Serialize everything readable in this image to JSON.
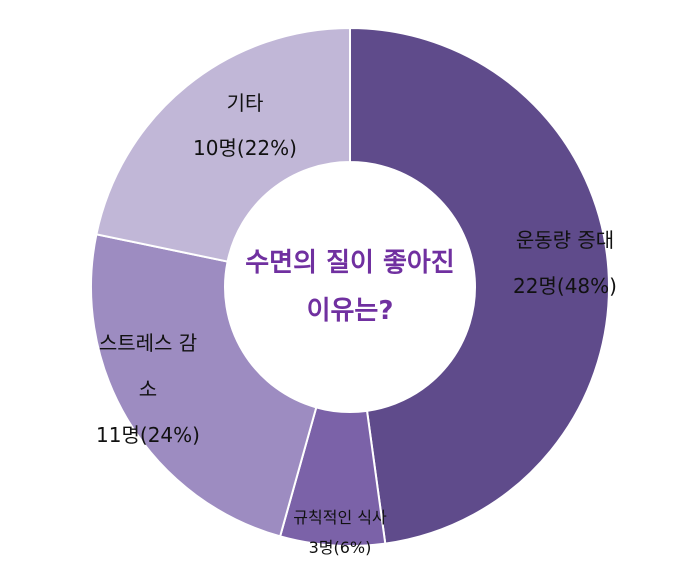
{
  "chart_data": {
    "type": "donut",
    "title": "수면의 질이 좋아진 이유는?",
    "categories": [
      "운동량 증대",
      "규칙적인 식사",
      "스트레스 감소",
      "기타"
    ],
    "values": [
      22,
      3,
      11,
      10
    ],
    "value_labels": [
      "22명(48%)",
      "3명(6%)",
      "11명(24%)",
      "10명(22%)"
    ],
    "colors": [
      "#5f4b8b",
      "#7b62a8",
      "#9d8cc1",
      "#c1b7d7"
    ]
  }
}
